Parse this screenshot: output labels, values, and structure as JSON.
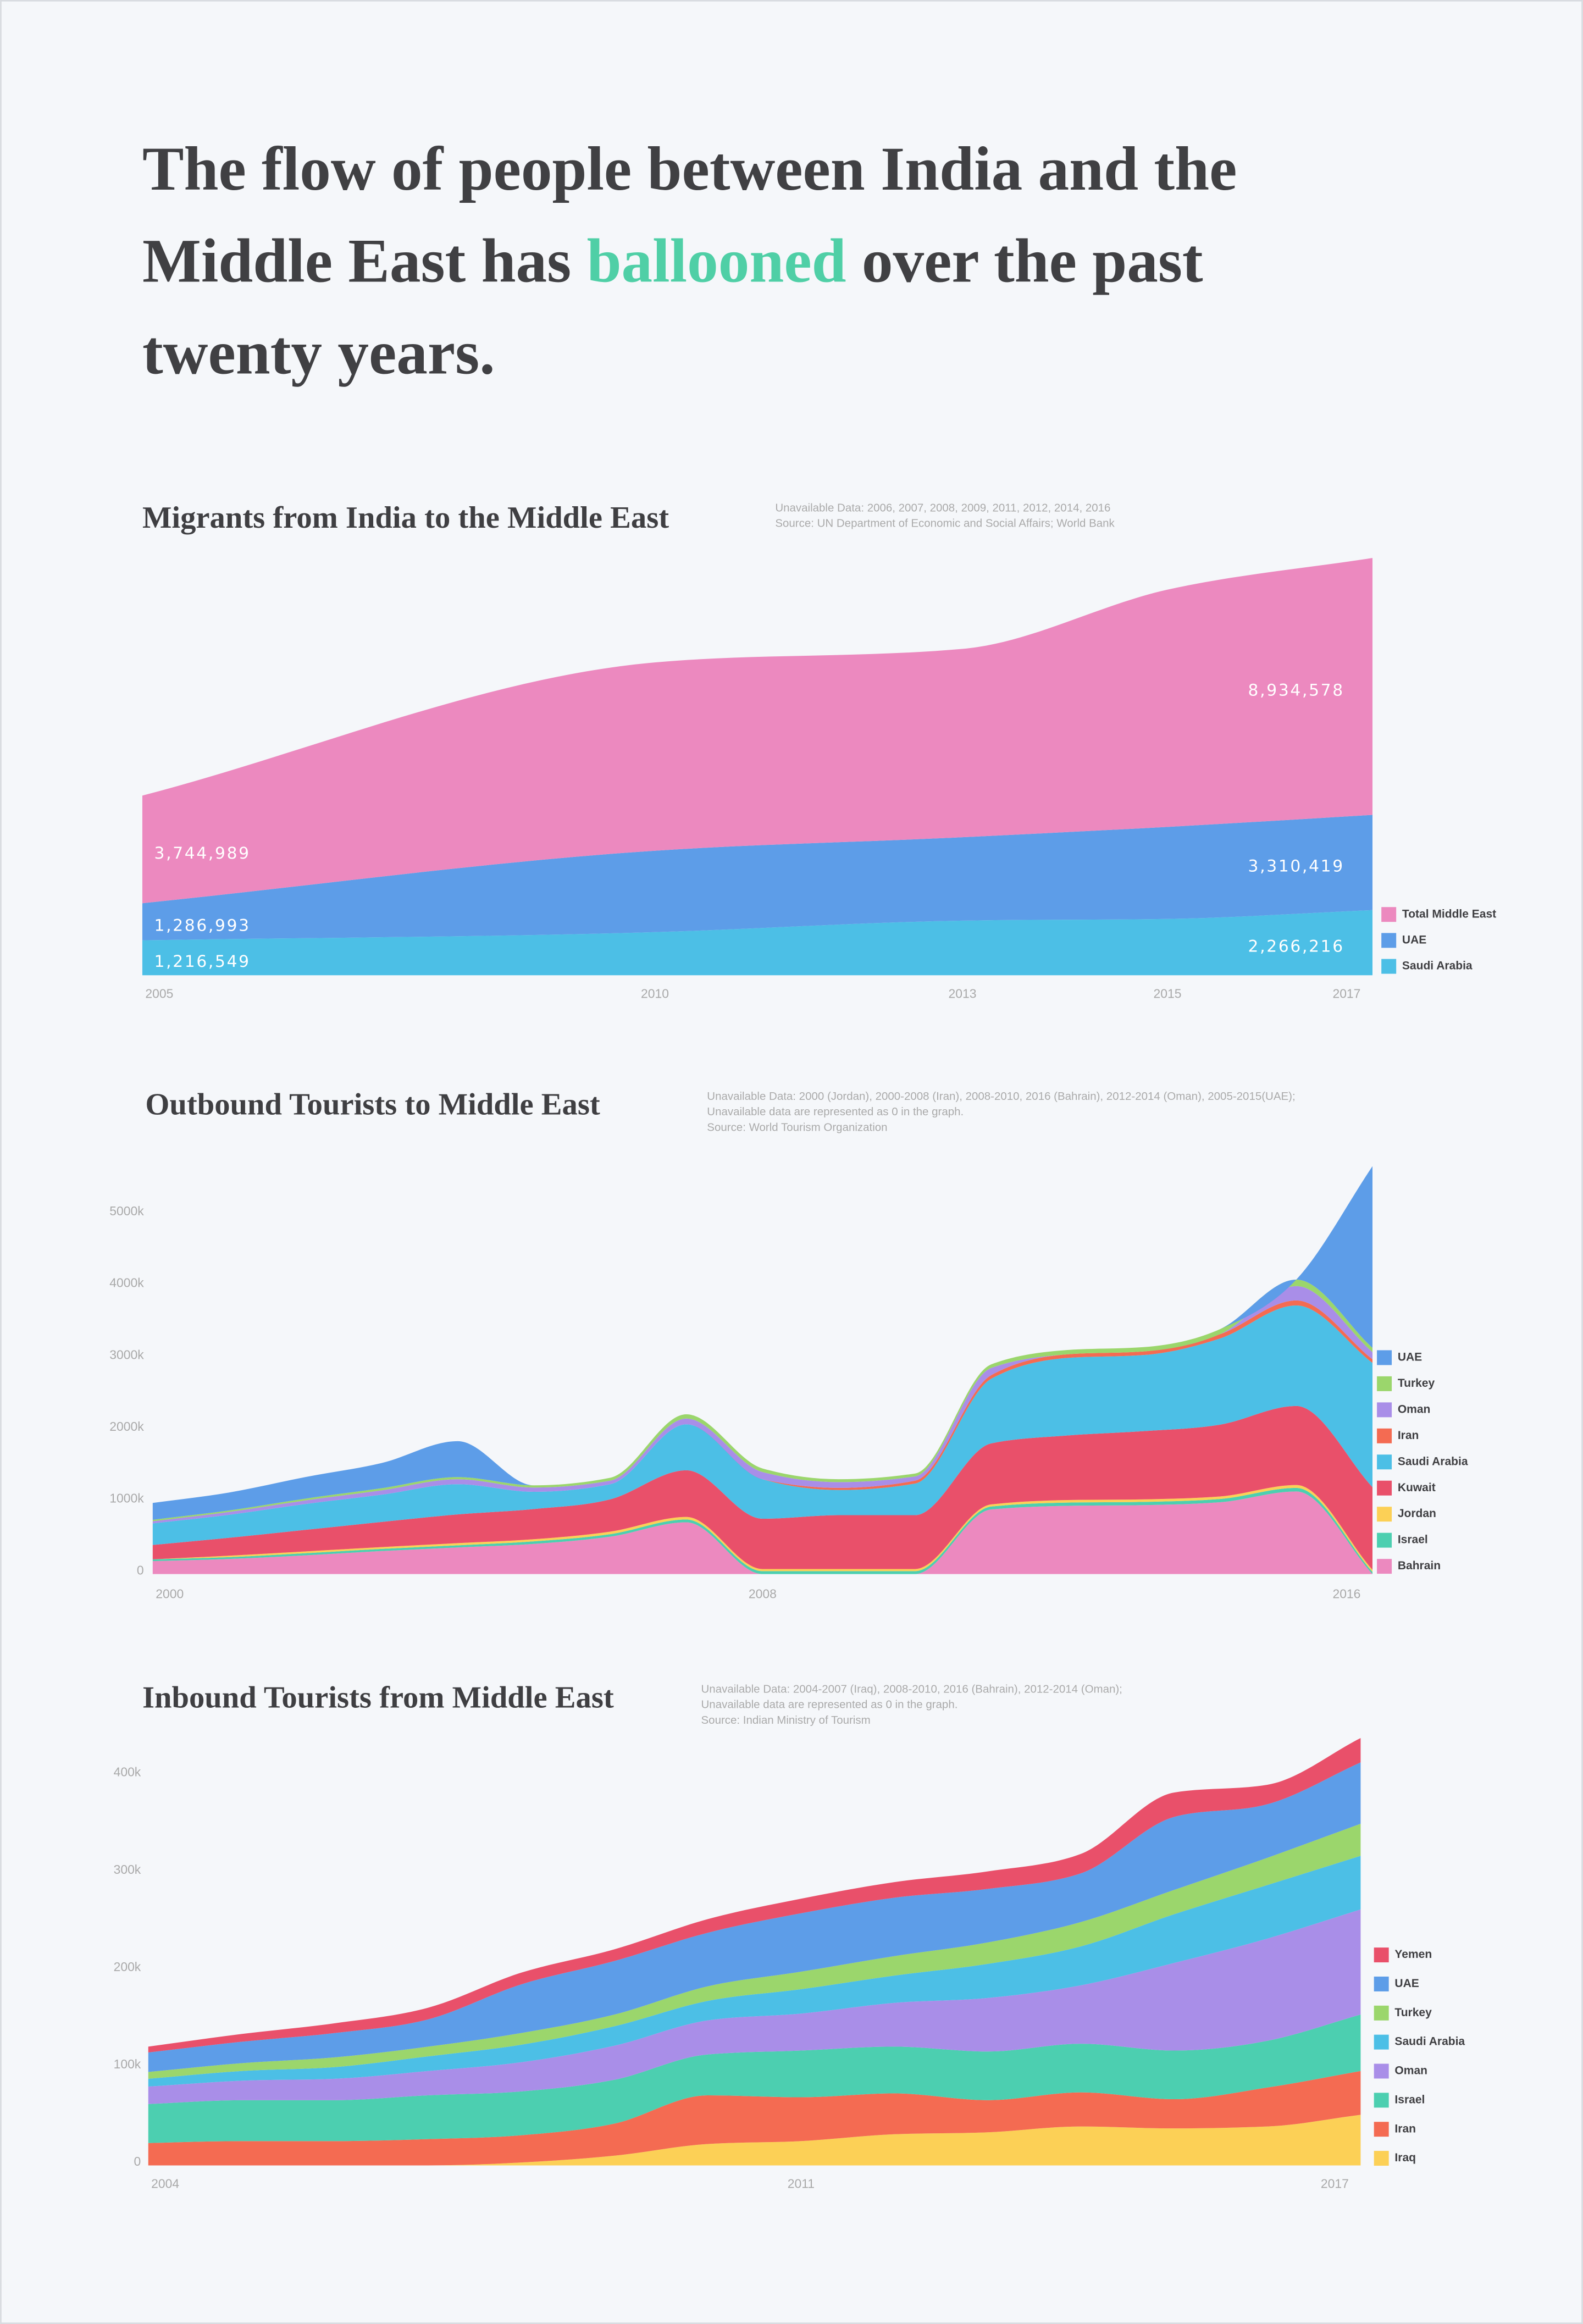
{
  "headline": {
    "line1": "The flow of people between India and the",
    "line2_before": "Middle East has ",
    "highlight": "ballooned",
    "line2_after": " over the past",
    "line3": "twenty years."
  },
  "chart_data": [
    {
      "type": "stacked-area",
      "title": "Migrants from India to the Middle East",
      "notes": [
        "Unavailable Data: 2006, 2007, 2008, 2009, 2011, 2012, 2014, 2016",
        "Source: UN Department of Economic and Social Affairs; World Bank"
      ],
      "x": [
        2005,
        2010,
        2013,
        2015,
        2017
      ],
      "xlim": [
        2005,
        2017
      ],
      "xticks": [
        2005,
        2010,
        2013,
        2015,
        2017
      ],
      "ylim": [
        0,
        15000000
      ],
      "legend": "right",
      "series": [
        {
          "name": "Saudi Arabia",
          "color": "#4cbfe6",
          "values": [
            1216549,
            1500000,
            1900000,
            1960000,
            2266216
          ],
          "value_labels": [
            "1,216,549",
            null,
            null,
            null,
            "2,266,216"
          ]
        },
        {
          "name": "UAE",
          "color": "#5d9de8",
          "values": [
            1286993,
            2830000,
            2900000,
            3200000,
            3310419
          ],
          "value_labels": [
            "1,286,993",
            null,
            null,
            null,
            "3,310,419"
          ]
        },
        {
          "name": "Total Middle East",
          "color": "#ec89bf",
          "values": [
            3744989,
            6550000,
            6550000,
            8250000,
            8934578
          ],
          "value_labels": [
            "3,744,989",
            null,
            null,
            null,
            "8,934,578"
          ]
        }
      ]
    },
    {
      "type": "stacked-area",
      "title": "Outbound Tourists to Middle East",
      "notes": [
        "Unavailable Data: 2000 (Jordan), 2000-2008 (Iran), 2008-2010, 2016 (Bahrain), 2012-2014 (Oman), 2005-2015(UAE);",
        "Unavailable data are represented as 0 in the graph.",
        "Source: World Tourism Organization"
      ],
      "x": [
        2000,
        2001,
        2002,
        2003,
        2004,
        2005,
        2006,
        2007,
        2008,
        2009,
        2010,
        2011,
        2012,
        2013,
        2014,
        2015,
        2016
      ],
      "xlim": [
        2000,
        2016
      ],
      "xticks": [
        2000,
        2008,
        2016
      ],
      "ylim": [
        0,
        5800
      ],
      "yticks": [
        0,
        {
          "value": 1000,
          "label": "1000k"
        },
        {
          "value": 2000,
          "label": "2000k"
        },
        {
          "value": 3000,
          "label": "3000k"
        },
        {
          "value": 4000,
          "label": "4000k"
        },
        {
          "value": 5000,
          "label": "5000k"
        }
      ],
      "legend": "right",
      "series": [
        {
          "name": "Bahrain",
          "color": "#ec89bf",
          "values": [
            180,
            210,
            260,
            320,
            370,
            420,
            520,
            720,
            0,
            0,
            0,
            900,
            950,
            960,
            1000,
            1150,
            0
          ]
        },
        {
          "name": "Israel",
          "color": "#4ccfb0",
          "values": [
            25,
            25,
            30,
            30,
            30,
            35,
            35,
            40,
            40,
            40,
            40,
            40,
            45,
            45,
            45,
            50,
            30
          ]
        },
        {
          "name": "Jordan",
          "color": "#fcd056",
          "values": [
            0,
            20,
            25,
            25,
            30,
            30,
            35,
            35,
            30,
            30,
            30,
            30,
            35,
            35,
            35,
            40,
            30
          ]
        },
        {
          "name": "Kuwait",
          "color": "#e9506a",
          "values": [
            200,
            250,
            300,
            350,
            400,
            420,
            450,
            650,
            700,
            750,
            750,
            850,
            900,
            950,
            1000,
            1100,
            1150
          ]
        },
        {
          "name": "Saudi Arabia",
          "color": "#4cbfe6",
          "values": [
            300,
            320,
            360,
            380,
            420,
            240,
            210,
            640,
            550,
            350,
            440,
            900,
            1080,
            1060,
            1200,
            1400,
            1730
          ]
        },
        {
          "name": "Iran",
          "color": "#f46b52",
          "values": [
            0,
            0,
            0,
            0,
            0,
            0,
            0,
            0,
            0,
            30,
            40,
            50,
            50,
            50,
            60,
            70,
            50
          ]
        },
        {
          "name": "Oman",
          "color": "#a98ee8",
          "values": [
            30,
            40,
            50,
            60,
            70,
            60,
            50,
            80,
            100,
            80,
            60,
            100,
            0,
            0,
            0,
            200,
            100
          ]
        },
        {
          "name": "Turkey",
          "color": "#9bd66c",
          "values": [
            20,
            20,
            25,
            30,
            30,
            30,
            40,
            60,
            50,
            40,
            40,
            50,
            60,
            60,
            70,
            90,
            60
          ]
        },
        {
          "name": "UAE",
          "color": "#5d9de8",
          "values": [
            235,
            250,
            300,
            350,
            500,
            0,
            0,
            0,
            0,
            0,
            0,
            0,
            0,
            0,
            0,
            0,
            2530
          ]
        }
      ]
    },
    {
      "type": "stacked-area",
      "title": "Inbound Tourists from Middle East",
      "notes": [
        "Unavailable Data: 2004-2007 (Iraq), 2008-2010, 2016 (Bahrain), 2012-2014 (Oman);",
        "Unavailable data are represented as 0 in the graph.",
        "Source: Indian Ministry of Tourism"
      ],
      "x": [
        2004,
        2005,
        2006,
        2007,
        2008,
        2009,
        2010,
        2011,
        2012,
        2013,
        2014,
        2015,
        2016,
        2017
      ],
      "xlim": [
        2004,
        2017
      ],
      "xticks": [
        2004,
        2011,
        2017
      ],
      "ylim": [
        0,
        440
      ],
      "yticks": [
        0,
        {
          "value": 100,
          "label": "100k"
        },
        {
          "value": 200,
          "label": "200k"
        },
        {
          "value": 300,
          "label": "300k"
        },
        {
          "value": 400,
          "label": "400k"
        }
      ],
      "legend": "right",
      "series": [
        {
          "name": "Iraq",
          "color": "#fcd056",
          "values": [
            0,
            0,
            0,
            0,
            3,
            10,
            22,
            25,
            32,
            34,
            40,
            38,
            40,
            52
          ]
        },
        {
          "name": "Iran",
          "color": "#f46b52",
          "values": [
            23,
            25,
            25,
            27,
            28,
            33,
            50,
            45,
            42,
            33,
            35,
            30,
            40,
            45
          ]
        },
        {
          "name": "Israel",
          "color": "#4ccfb0",
          "values": [
            40,
            42,
            42,
            45,
            45,
            45,
            42,
            48,
            48,
            50,
            50,
            50,
            48,
            58
          ]
        },
        {
          "name": "Oman",
          "color": "#a98ee8",
          "values": [
            18,
            20,
            22,
            25,
            30,
            35,
            35,
            38,
            45,
            55,
            60,
            90,
            105,
            108
          ]
        },
        {
          "name": "Saudi Arabia",
          "color": "#4cbfe6",
          "values": [
            8,
            10,
            12,
            15,
            18,
            20,
            20,
            25,
            28,
            35,
            40,
            50,
            55,
            55
          ]
        },
        {
          "name": "Turkey",
          "color": "#9bd66c",
          "values": [
            7,
            8,
            10,
            10,
            12,
            12,
            15,
            18,
            20,
            22,
            25,
            25,
            28,
            33
          ]
        },
        {
          "name": "UAE",
          "color": "#5d9de8",
          "values": [
            20,
            22,
            25,
            28,
            50,
            55,
            55,
            60,
            60,
            55,
            50,
            75,
            55,
            63
          ]
        },
        {
          "name": "Yemen",
          "color": "#e9506a",
          "values": [
            6,
            8,
            10,
            12,
            12,
            12,
            14,
            15,
            16,
            18,
            20,
            25,
            20,
            25
          ]
        }
      ]
    }
  ]
}
